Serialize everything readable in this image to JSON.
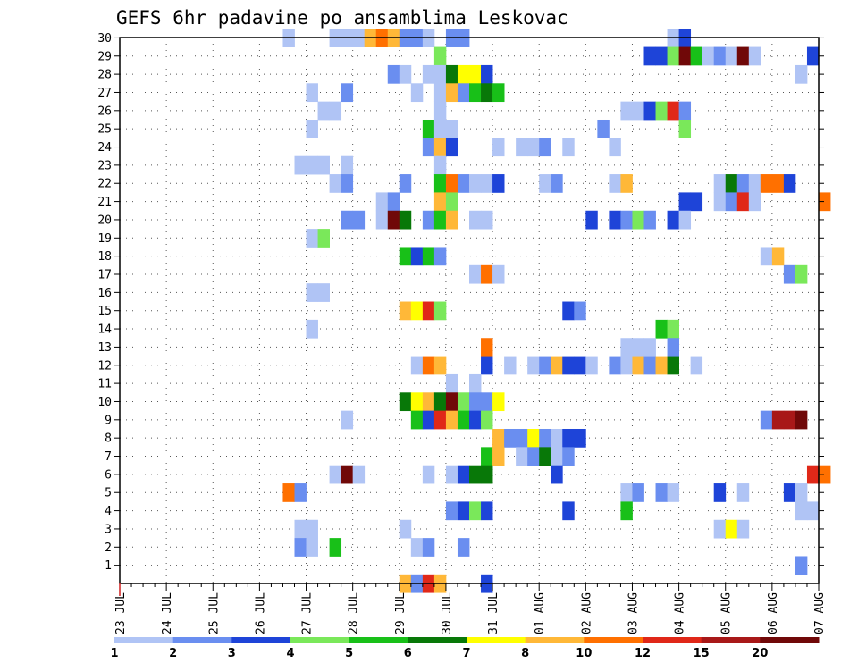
{
  "chart_data": {
    "type": "heatmap",
    "title": "GEFS 6hr padavine po ansamblima Leskovac",
    "xlabel": "",
    "ylabel": "",
    "x_ticks": [
      "23 JUL",
      "24 JUL",
      "25 JUL",
      "26 JUL",
      "27 JUL",
      "28 JUL",
      "29 JUL",
      "30 JUL",
      "31 JUL",
      "01 AUG",
      "02 AUG",
      "03 AUG",
      "04 AUG",
      "05 AUG",
      "06 AUG",
      "07 AUG"
    ],
    "x_range_days": [
      0,
      15
    ],
    "y_ticks": [
      1,
      2,
      3,
      4,
      5,
      6,
      7,
      8,
      9,
      10,
      11,
      12,
      13,
      14,
      15,
      16,
      17,
      18,
      19,
      20,
      21,
      22,
      23,
      24,
      25,
      26,
      27,
      28,
      29,
      30
    ],
    "y_range": [
      0,
      30
    ],
    "grid": true,
    "colorbar": {
      "labels": [
        "1",
        "2",
        "3",
        "4",
        "5",
        "6",
        "7",
        "8",
        "10",
        "12",
        "15",
        "20"
      ],
      "colors": [
        "#b0c4f5",
        "#6a8ef0",
        "#1e44d8",
        "#7ae85a",
        "#18c018",
        "#087808",
        "#ffff00",
        "#ffb838",
        "#ff7000",
        "#e02818",
        "#a81818",
        "#700808"
      ]
    },
    "cells_note": "each cell: [day offset from 23 JUL at left edge of 6h slot, member row, color class 1..12]",
    "cells": [
      [
        3.5,
        30,
        1
      ],
      [
        4.5,
        30,
        1
      ],
      [
        4.75,
        30,
        1
      ],
      [
        5,
        30,
        1
      ],
      [
        5.25,
        30,
        8
      ],
      [
        5.5,
        30,
        9
      ],
      [
        5.75,
        30,
        8
      ],
      [
        6,
        30,
        2
      ],
      [
        6.25,
        30,
        2
      ],
      [
        6.5,
        30,
        1
      ],
      [
        7,
        30,
        2
      ],
      [
        7.25,
        30,
        2
      ],
      [
        11.75,
        30,
        1
      ],
      [
        12,
        30,
        3
      ],
      [
        6.75,
        29,
        4
      ],
      [
        11.25,
        29,
        3
      ],
      [
        11.5,
        29,
        3
      ],
      [
        11.75,
        29,
        4
      ],
      [
        12,
        29,
        12
      ],
      [
        12.25,
        29,
        5
      ],
      [
        12.5,
        29,
        1
      ],
      [
        12.75,
        29,
        2
      ],
      [
        13,
        29,
        1
      ],
      [
        13.25,
        29,
        12
      ],
      [
        13.5,
        29,
        1
      ],
      [
        14.75,
        29,
        3
      ],
      [
        5.75,
        28,
        2
      ],
      [
        6,
        28,
        1
      ],
      [
        6.5,
        28,
        1
      ],
      [
        6.75,
        28,
        1
      ],
      [
        7,
        28,
        6
      ],
      [
        7.25,
        28,
        7
      ],
      [
        7.5,
        28,
        7
      ],
      [
        7.75,
        28,
        3
      ],
      [
        14.5,
        28,
        1
      ],
      [
        4,
        27,
        1
      ],
      [
        4.75,
        27,
        2
      ],
      [
        6.25,
        27,
        1
      ],
      [
        6.75,
        27,
        1
      ],
      [
        7,
        27,
        8
      ],
      [
        7.25,
        27,
        2
      ],
      [
        7.5,
        27,
        5
      ],
      [
        7.75,
        27,
        6
      ],
      [
        8,
        27,
        5
      ],
      [
        4.25,
        26,
        1
      ],
      [
        4.5,
        26,
        1
      ],
      [
        6.75,
        26,
        1
      ],
      [
        10.75,
        26,
        1
      ],
      [
        11,
        26,
        1
      ],
      [
        11.25,
        26,
        3
      ],
      [
        11.5,
        26,
        4
      ],
      [
        11.75,
        26,
        10
      ],
      [
        12,
        26,
        2
      ],
      [
        4,
        25,
        1
      ],
      [
        6.5,
        25,
        5
      ],
      [
        6.75,
        25,
        1
      ],
      [
        7,
        25,
        1
      ],
      [
        10.25,
        25,
        2
      ],
      [
        12,
        25,
        4
      ],
      [
        6.5,
        24,
        2
      ],
      [
        6.75,
        24,
        8
      ],
      [
        7,
        24,
        3
      ],
      [
        8,
        24,
        1
      ],
      [
        8.5,
        24,
        1
      ],
      [
        8.75,
        24,
        1
      ],
      [
        9,
        24,
        2
      ],
      [
        9.5,
        24,
        1
      ],
      [
        10.5,
        24,
        1
      ],
      [
        3.75,
        23,
        1
      ],
      [
        4,
        23,
        1
      ],
      [
        4.25,
        23,
        1
      ],
      [
        4.75,
        23,
        1
      ],
      [
        6.75,
        23,
        1
      ],
      [
        4.5,
        22,
        1
      ],
      [
        4.75,
        22,
        2
      ],
      [
        6,
        22,
        2
      ],
      [
        6.75,
        22,
        5
      ],
      [
        7,
        22,
        9
      ],
      [
        7.25,
        22,
        2
      ],
      [
        7.5,
        22,
        1
      ],
      [
        7.75,
        22,
        1
      ],
      [
        8,
        22,
        3
      ],
      [
        9,
        22,
        1
      ],
      [
        9.25,
        22,
        2
      ],
      [
        10.5,
        22,
        1
      ],
      [
        10.75,
        22,
        8
      ],
      [
        12.75,
        22,
        1
      ],
      [
        13,
        22,
        6
      ],
      [
        13.25,
        22,
        2
      ],
      [
        13.5,
        22,
        1
      ],
      [
        13.75,
        22,
        9
      ],
      [
        14,
        22,
        9
      ],
      [
        14.25,
        22,
        3
      ],
      [
        5.5,
        21,
        1
      ],
      [
        5.75,
        21,
        2
      ],
      [
        6.75,
        21,
        8
      ],
      [
        7,
        21,
        4
      ],
      [
        12,
        21,
        3
      ],
      [
        12.25,
        21,
        3
      ],
      [
        12.75,
        21,
        1
      ],
      [
        13,
        21,
        2
      ],
      [
        13.25,
        21,
        10
      ],
      [
        13.5,
        21,
        1
      ],
      [
        15,
        21,
        9
      ],
      [
        4.75,
        20,
        2
      ],
      [
        5,
        20,
        2
      ],
      [
        5.5,
        20,
        1
      ],
      [
        5.75,
        20,
        12
      ],
      [
        6,
        20,
        6
      ],
      [
        6.5,
        20,
        2
      ],
      [
        6.75,
        20,
        5
      ],
      [
        7,
        20,
        8
      ],
      [
        7.5,
        20,
        1
      ],
      [
        7.75,
        20,
        1
      ],
      [
        10,
        20,
        3
      ],
      [
        10.5,
        20,
        3
      ],
      [
        10.75,
        20,
        2
      ],
      [
        11,
        20,
        4
      ],
      [
        11.25,
        20,
        2
      ],
      [
        11.75,
        20,
        3
      ],
      [
        12,
        20,
        1
      ],
      [
        4,
        19,
        1
      ],
      [
        4.25,
        19,
        4
      ],
      [
        6,
        18,
        5
      ],
      [
        6.25,
        18,
        3
      ],
      [
        6.5,
        18,
        5
      ],
      [
        6.75,
        18,
        2
      ],
      [
        13.75,
        18,
        1
      ],
      [
        14,
        18,
        8
      ],
      [
        7.5,
        17,
        1
      ],
      [
        7.75,
        17,
        9
      ],
      [
        8,
        17,
        1
      ],
      [
        14.25,
        17,
        2
      ],
      [
        14.5,
        17,
        4
      ],
      [
        4,
        16,
        1
      ],
      [
        4.25,
        16,
        1
      ],
      [
        6,
        15,
        8
      ],
      [
        6.25,
        15,
        7
      ],
      [
        6.5,
        15,
        10
      ],
      [
        6.75,
        15,
        4
      ],
      [
        9.5,
        15,
        3
      ],
      [
        9.75,
        15,
        2
      ],
      [
        4,
        14,
        1
      ],
      [
        11.5,
        14,
        5
      ],
      [
        11.75,
        14,
        4
      ],
      [
        7.75,
        13,
        9
      ],
      [
        10.75,
        13,
        1
      ],
      [
        11,
        13,
        1
      ],
      [
        11.25,
        13,
        1
      ],
      [
        11.75,
        13,
        2
      ],
      [
        6.25,
        12,
        1
      ],
      [
        6.5,
        12,
        9
      ],
      [
        6.75,
        12,
        8
      ],
      [
        7.75,
        12,
        3
      ],
      [
        8.25,
        12,
        1
      ],
      [
        8.75,
        12,
        1
      ],
      [
        9,
        12,
        2
      ],
      [
        9.25,
        12,
        8
      ],
      [
        9.5,
        12,
        3
      ],
      [
        9.75,
        12,
        3
      ],
      [
        10,
        12,
        1
      ],
      [
        10.5,
        12,
        2
      ],
      [
        10.75,
        12,
        1
      ],
      [
        11,
        12,
        8
      ],
      [
        11.25,
        12,
        2
      ],
      [
        11.5,
        12,
        8
      ],
      [
        11.75,
        12,
        6
      ],
      [
        12.25,
        12,
        1
      ],
      [
        7,
        11,
        1
      ],
      [
        7.5,
        11,
        1
      ],
      [
        6,
        10,
        6
      ],
      [
        6.25,
        10,
        7
      ],
      [
        6.5,
        10,
        8
      ],
      [
        6.75,
        10,
        6
      ],
      [
        7,
        10,
        12
      ],
      [
        7.25,
        10,
        4
      ],
      [
        7.5,
        10,
        2
      ],
      [
        7.75,
        10,
        2
      ],
      [
        8,
        10,
        7
      ],
      [
        4.75,
        9,
        1
      ],
      [
        6.25,
        9,
        5
      ],
      [
        6.5,
        9,
        3
      ],
      [
        6.75,
        9,
        10
      ],
      [
        7,
        9,
        8
      ],
      [
        7.25,
        9,
        5
      ],
      [
        7.5,
        9,
        3
      ],
      [
        7.75,
        9,
        4
      ],
      [
        13.75,
        9,
        2
      ],
      [
        14,
        9,
        11
      ],
      [
        14.25,
        9,
        11
      ],
      [
        14.5,
        9,
        12
      ],
      [
        8,
        8,
        8
      ],
      [
        8.25,
        8,
        2
      ],
      [
        8.5,
        8,
        2
      ],
      [
        8.75,
        8,
        7
      ],
      [
        9,
        8,
        2
      ],
      [
        9.25,
        8,
        1
      ],
      [
        9.5,
        8,
        3
      ],
      [
        9.75,
        8,
        3
      ],
      [
        7.75,
        7,
        5
      ],
      [
        8,
        7,
        8
      ],
      [
        8.5,
        7,
        1
      ],
      [
        8.75,
        7,
        2
      ],
      [
        9,
        7,
        6
      ],
      [
        9.25,
        7,
        1
      ],
      [
        9.5,
        7,
        2
      ],
      [
        4.5,
        6,
        1
      ],
      [
        4.75,
        6,
        12
      ],
      [
        5,
        6,
        1
      ],
      [
        6.5,
        6,
        1
      ],
      [
        7,
        6,
        1
      ],
      [
        7.25,
        6,
        3
      ],
      [
        7.5,
        6,
        6
      ],
      [
        7.75,
        6,
        6
      ],
      [
        9.25,
        6,
        3
      ],
      [
        14.75,
        6,
        10
      ],
      [
        15,
        6,
        9
      ],
      [
        3.5,
        5,
        9
      ],
      [
        3.75,
        5,
        2
      ],
      [
        10.75,
        5,
        1
      ],
      [
        11,
        5,
        2
      ],
      [
        11.5,
        5,
        2
      ],
      [
        11.75,
        5,
        1
      ],
      [
        12.75,
        5,
        3
      ],
      [
        13.25,
        5,
        1
      ],
      [
        14.25,
        5,
        3
      ],
      [
        14.5,
        5,
        1
      ],
      [
        7,
        4,
        2
      ],
      [
        7.25,
        4,
        3
      ],
      [
        7.5,
        4,
        4
      ],
      [
        7.75,
        4,
        3
      ],
      [
        9.5,
        4,
        3
      ],
      [
        10.75,
        4,
        5
      ],
      [
        14.5,
        4,
        1
      ],
      [
        14.75,
        4,
        1
      ],
      [
        3.75,
        3,
        1
      ],
      [
        4,
        3,
        1
      ],
      [
        6,
        3,
        1
      ],
      [
        12.75,
        3,
        1
      ],
      [
        13,
        3,
        7
      ],
      [
        13.25,
        3,
        1
      ],
      [
        3.75,
        2,
        2
      ],
      [
        4,
        2,
        1
      ],
      [
        4.5,
        2,
        5
      ],
      [
        6.25,
        2,
        1
      ],
      [
        6.5,
        2,
        2
      ],
      [
        7.25,
        2,
        2
      ],
      [
        14.5,
        1,
        2
      ],
      [
        6,
        0,
        8
      ],
      [
        6.25,
        0,
        2
      ],
      [
        6.5,
        0,
        10
      ],
      [
        6.75,
        0,
        8
      ],
      [
        7.75,
        0,
        3
      ]
    ]
  }
}
